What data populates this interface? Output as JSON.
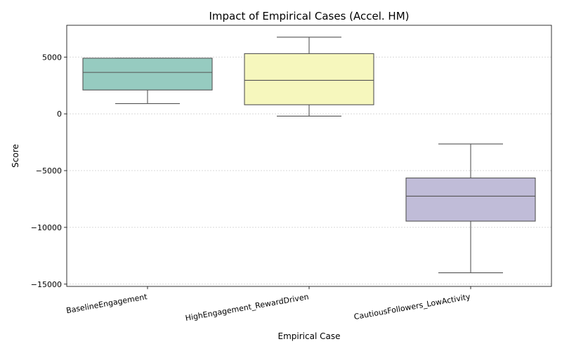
{
  "chart_data": {
    "type": "box",
    "title": "Impact of Empirical Cases (Accel. HM)",
    "xlabel": "Empirical Case",
    "ylabel": "Score",
    "ylim": [
      -15200,
      7800
    ],
    "yticks": [
      5000,
      0,
      -5000,
      -10000,
      -15000
    ],
    "ytick_labels": [
      "5000",
      "0",
      "−5000",
      "−10000",
      "−15000"
    ],
    "grid": "horizontal dotted",
    "categories": [
      "BaselineEngagement",
      "HighEngagement_RewardDriven",
      "CautiousFollowers_LowActivity"
    ],
    "boxes": [
      {
        "category": "BaselineEngagement",
        "whisker_low": 900,
        "q1": 2100,
        "median": 3650,
        "q3": 4900,
        "whisker_high": 4900,
        "color": "#96cbc0"
      },
      {
        "category": "HighEngagement_RewardDriven",
        "whisker_low": -200,
        "q1": 800,
        "median": 2950,
        "q3": 5300,
        "whisker_high": 6750,
        "color": "#f6f7bd"
      },
      {
        "category": "CautiousFollowers_LowActivity",
        "whisker_low": -14000,
        "q1": -9450,
        "median": -7250,
        "q3": -5650,
        "whisker_high": -2650,
        "color": "#c0bcd8"
      }
    ]
  }
}
